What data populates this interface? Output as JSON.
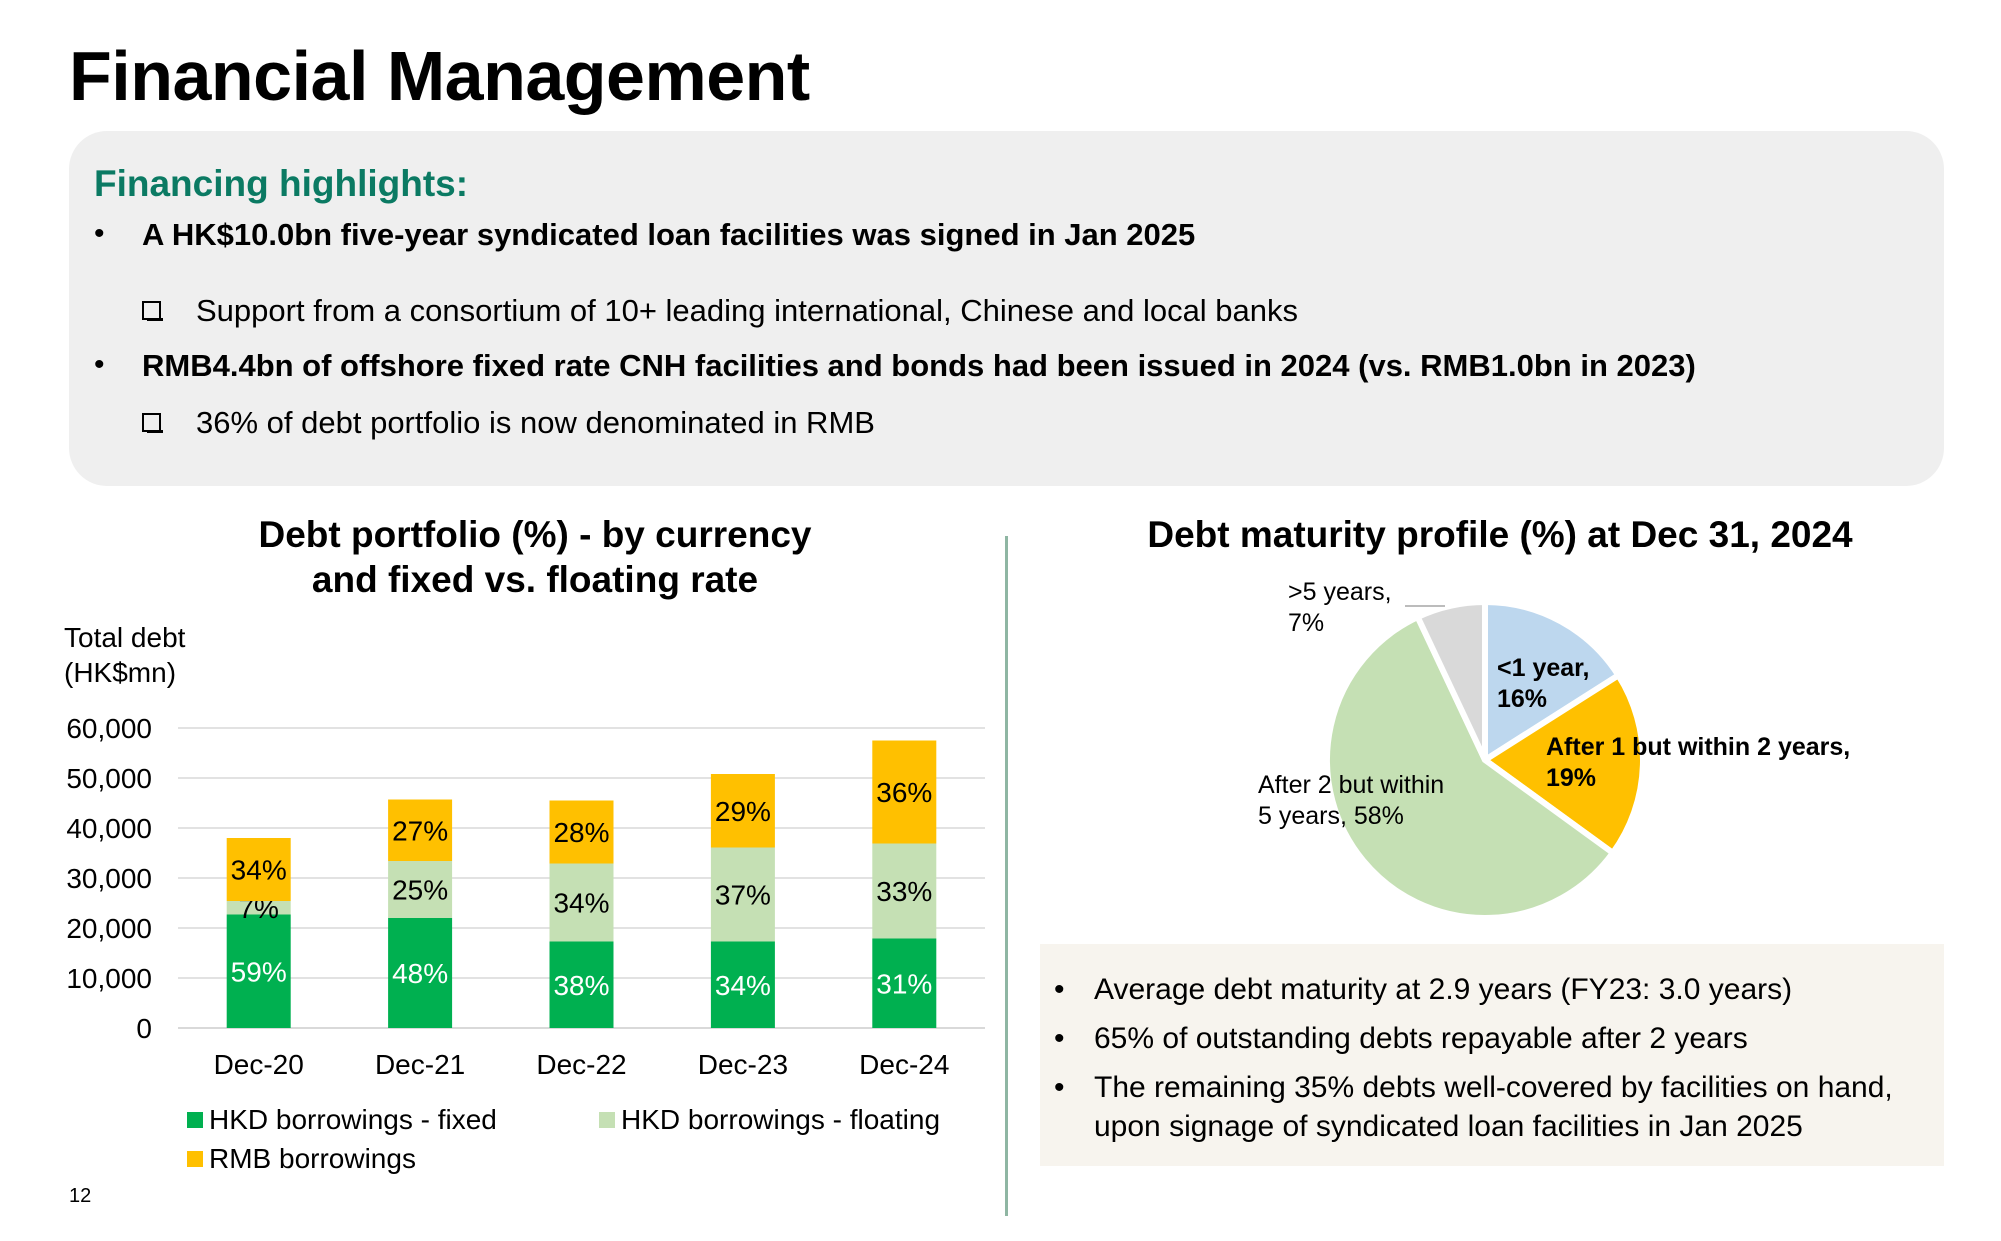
{
  "page": {
    "title": "Financial Management",
    "page_number": "12"
  },
  "highlights": {
    "heading": "Financing highlights:",
    "items": [
      {
        "text": "A HK$10.0bn five-year syndicated loan facilities was signed in Jan 2025",
        "sub": "Support from a consortium of 10+ leading international, Chinese and local banks"
      },
      {
        "text": "RMB4.4bn of offshore fixed rate CNH facilities and bonds had been issued in 2024 (vs. RMB1.0bn in 2023)",
        "sub": "36% of debt portfolio is now denominated in RMB"
      }
    ]
  },
  "notes": [
    "Average debt maturity at 2.9 years (FY23: 3.0 years)",
    "65% of outstanding debts repayable after 2 years",
    "The remaining 35% debts well-covered by facilities on hand,",
    "upon signage of syndicated loan facilities in Jan 2025"
  ],
  "chart_data": [
    {
      "type": "bar",
      "stacked": true,
      "title": [
        "Debt portfolio (%) - by currency",
        "and fixed vs. floating rate"
      ],
      "ylabel": [
        "Total debt",
        "(HK$mn)"
      ],
      "ylim": [
        0,
        60000
      ],
      "yticks": [
        "0",
        "10,000",
        "20,000",
        "30,000",
        "40,000",
        "50,000",
        "60,000"
      ],
      "categories": [
        "Dec-20",
        "Dec-21",
        "Dec-22",
        "Dec-23",
        "Dec-24"
      ],
      "series": [
        {
          "name": "HKD borrowings - fixed",
          "color": "#00b050",
          "values": [
            22700,
            22000,
            17300,
            17300,
            17900
          ],
          "labels": [
            "59%",
            "48%",
            "38%",
            "34%",
            "31%"
          ],
          "label_color": "#ffffff"
        },
        {
          "name": "HKD borrowings - floating",
          "color": "#c5e0b4",
          "values": [
            2700,
            11400,
            15600,
            18800,
            19000
          ],
          "labels": [
            "7%",
            "25%",
            "34%",
            "37%",
            "33%"
          ],
          "label_color": "#000000"
        },
        {
          "name": "RMB borrowings",
          "color": "#ffc000",
          "values": [
            12600,
            12300,
            12600,
            14700,
            20600
          ],
          "labels": [
            "34%",
            "27%",
            "28%",
            "29%",
            "36%"
          ],
          "label_color": "#000000"
        }
      ],
      "legend": "bottom"
    },
    {
      "type": "pie",
      "title": "Debt maturity profile (%) at Dec 31, 2024",
      "slices": [
        {
          "label": "<1 year,",
          "value_label": "16%",
          "value": 16,
          "color": "#bdd7ee"
        },
        {
          "label": "After 1 but within 2 years,",
          "value_label": "19%",
          "value": 19,
          "color": "#ffc000"
        },
        {
          "label": "After 2 but within",
          "value_label": "5 years, 58%",
          "value": 58,
          "color": "#c5e0b4"
        },
        {
          "label": ">5 years,",
          "value_label": "7%",
          "value": 7,
          "color": "#d9d9d9"
        }
      ]
    }
  ]
}
